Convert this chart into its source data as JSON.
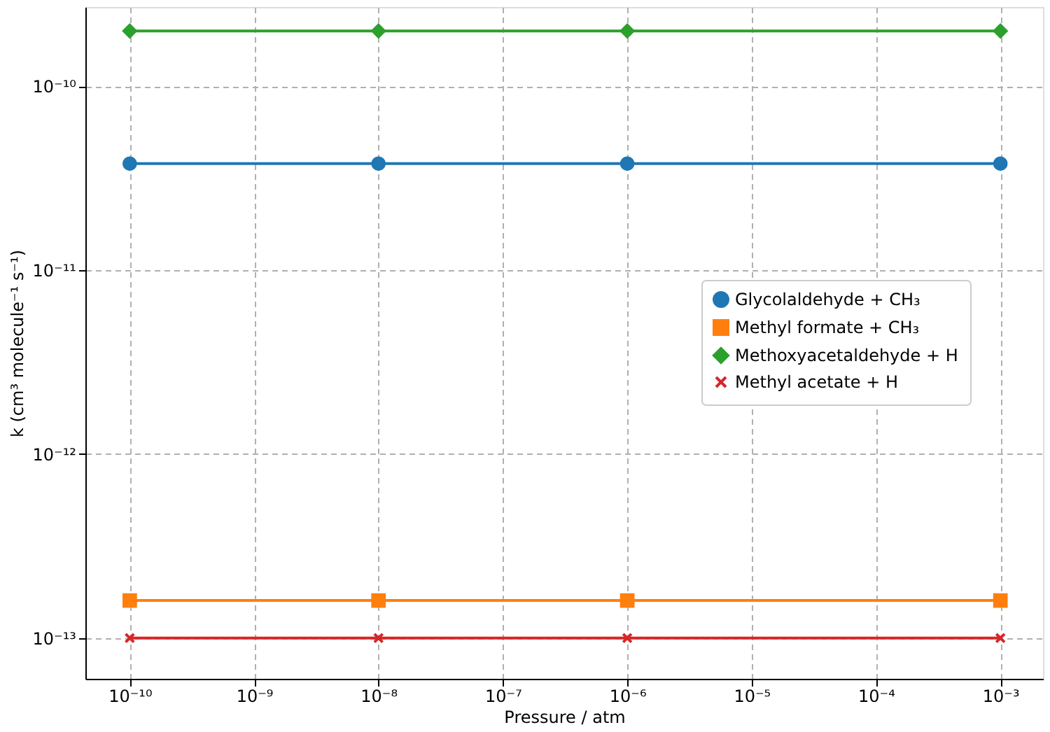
{
  "chart_data": {
    "type": "line",
    "xlabel": "Pressure / atm",
    "ylabel": "k (cm³ molecule⁻¹ s⁻¹)",
    "x": [
      1e-10,
      1e-08,
      1e-06,
      0.001
    ],
    "series": [
      {
        "name": "Glycolaldehyde + CH₃",
        "color": "#1f77b4",
        "marker": "circle",
        "values": [
          3.8e-11,
          3.8e-11,
          3.8e-11,
          3.8e-11
        ]
      },
      {
        "name": "Methyl formate + CH₃",
        "color": "#ff7f0e",
        "marker": "square",
        "values": [
          1.6e-13,
          1.6e-13,
          1.6e-13,
          1.6e-13
        ]
      },
      {
        "name": "Methoxyacetaldehyde + H",
        "color": "#2ca02c",
        "marker": "diamond",
        "values": [
          2e-10,
          2e-10,
          2e-10,
          2e-10
        ]
      },
      {
        "name": "Methyl acetate + H",
        "color": "#d62728",
        "marker": "cross",
        "values": [
          1e-13,
          1e-13,
          1e-13,
          1e-13
        ]
      }
    ],
    "log": "xy",
    "xlim": [
      4.4e-11,
      0.0022
    ],
    "ylim": [
      6e-14,
      2.7e-10
    ],
    "xticks": [
      {
        "value": 1e-10,
        "label": "10⁻¹⁰"
      },
      {
        "value": 1e-09,
        "label": "10⁻⁹"
      },
      {
        "value": 1e-08,
        "label": "10⁻⁸"
      },
      {
        "value": 1e-07,
        "label": "10⁻⁷"
      },
      {
        "value": 1e-06,
        "label": "10⁻⁶"
      },
      {
        "value": 1e-05,
        "label": "10⁻⁵"
      },
      {
        "value": 0.0001,
        "label": "10⁻⁴"
      },
      {
        "value": 0.001,
        "label": "10⁻³"
      }
    ],
    "yticks": [
      {
        "value": 1e-13,
        "label": "10⁻¹³"
      },
      {
        "value": 1e-12,
        "label": "10⁻¹²"
      },
      {
        "value": 1e-11,
        "label": "10⁻¹¹"
      },
      {
        "value": 1e-10,
        "label": "10⁻¹⁰"
      }
    ],
    "grid": true,
    "legend": "right",
    "line_style": "solid"
  }
}
